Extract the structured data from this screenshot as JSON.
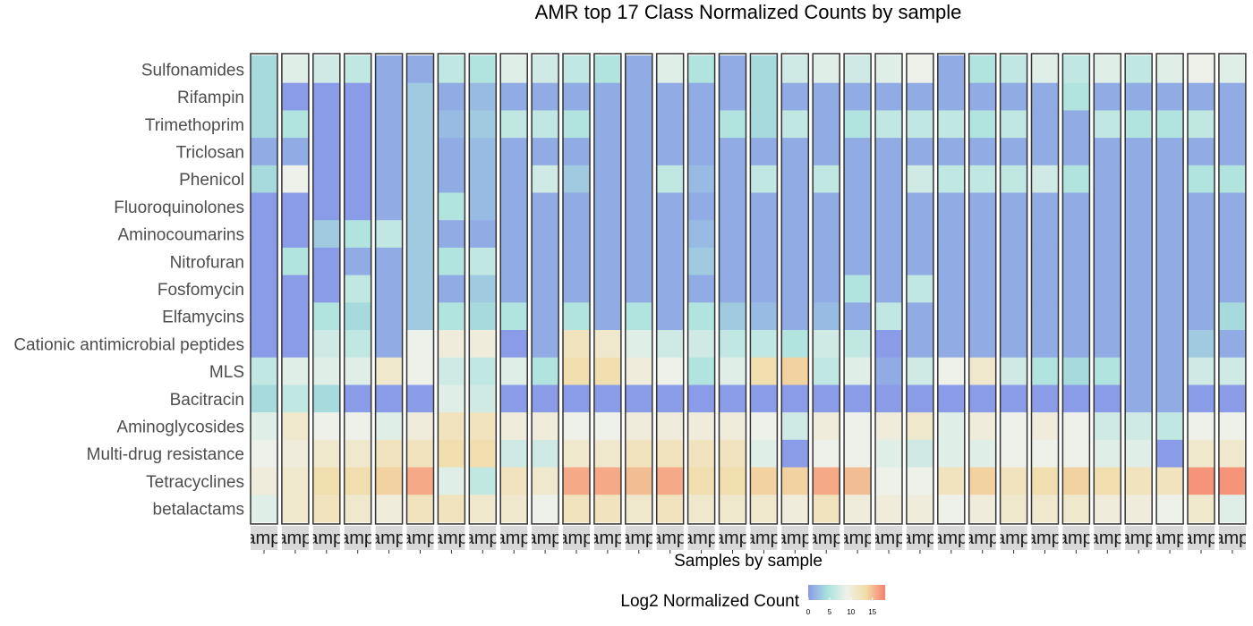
{
  "chart_data": {
    "type": "heatmap",
    "title": "AMR top 17 Class Normalized Counts by sample",
    "xlabel": "Samples by sample",
    "ylabel": "",
    "row_labels": [
      "Sulfonamides",
      "Rifampin",
      "Trimethoprim",
      "Triclosan",
      "Phenicol",
      "Fluoroquinolones",
      "Aminocoumarins",
      "Nitrofuran",
      "Fosfomycin",
      "Elfamycins",
      "Cationic antimicrobial peptides",
      "MLS",
      "Bacitracin",
      "Aminoglycosides",
      "Multi-drug resistance",
      "Tetracyclines",
      "betalactams"
    ],
    "facet_label": "Sample",
    "legend": {
      "title": "Log2 Normalized Count",
      "ticks": [
        0,
        5,
        10,
        15
      ],
      "range": [
        0,
        18
      ],
      "position": "bottom",
      "colors": [
        "#8a9be8",
        "#a9e2dc",
        "#eef1ea",
        "#f1dca8",
        "#f8806d"
      ]
    },
    "columns": [
      [
        4,
        4,
        4,
        1,
        4,
        0,
        0,
        0,
        0,
        0,
        0,
        6,
        4,
        8,
        9,
        10,
        8
      ],
      [
        8,
        0,
        5,
        1,
        9,
        0,
        0,
        5,
        0,
        0,
        0,
        8,
        6,
        11,
        10,
        11,
        11
      ],
      [
        7,
        0,
        0,
        0,
        0,
        0,
        3,
        0,
        0,
        5,
        7,
        8,
        4,
        9,
        11,
        13,
        12
      ],
      [
        6,
        0,
        0,
        0,
        0,
        0,
        5,
        1,
        6,
        4,
        6,
        8,
        0,
        9,
        11,
        13,
        11
      ],
      [
        1,
        1,
        1,
        1,
        1,
        1,
        6,
        1,
        1,
        1,
        1,
        11,
        0,
        8,
        12,
        14,
        10
      ],
      [
        1,
        3,
        3,
        3,
        3,
        3,
        3,
        3,
        3,
        3,
        9,
        9,
        0,
        10,
        12,
        16,
        12
      ],
      [
        6,
        1,
        2,
        1,
        1,
        5,
        1,
        5,
        1,
        5,
        10,
        7,
        8,
        12,
        13,
        8,
        12
      ],
      [
        5,
        2,
        3,
        2,
        2,
        2,
        1,
        6,
        3,
        4,
        10,
        6,
        7,
        12,
        13,
        6,
        11
      ],
      [
        8,
        1,
        6,
        1,
        1,
        1,
        1,
        1,
        1,
        5,
        0,
        8,
        0,
        10,
        7,
        12,
        11
      ],
      [
        7,
        1,
        6,
        1,
        7,
        1,
        1,
        1,
        1,
        1,
        1,
        5,
        0,
        10,
        7,
        11,
        9
      ],
      [
        6,
        1,
        5,
        1,
        3,
        1,
        1,
        1,
        1,
        5,
        12,
        13,
        0,
        9,
        11,
        16,
        12
      ],
      [
        5,
        1,
        1,
        1,
        1,
        1,
        1,
        1,
        1,
        1,
        11,
        13,
        0,
        9,
        11,
        16,
        12
      ],
      [
        1,
        1,
        1,
        1,
        1,
        1,
        1,
        1,
        1,
        5,
        8,
        10,
        0,
        10,
        12,
        15,
        11
      ],
      [
        8,
        1,
        1,
        1,
        6,
        1,
        1,
        1,
        1,
        1,
        7,
        9,
        0,
        10,
        12,
        16,
        12
      ],
      [
        5,
        1,
        1,
        1,
        2,
        1,
        2,
        3,
        1,
        5,
        7,
        5,
        0,
        10,
        12,
        13,
        11
      ],
      [
        1,
        1,
        5,
        1,
        1,
        1,
        1,
        1,
        1,
        3,
        6,
        8,
        0,
        10,
        12,
        13,
        11
      ],
      [
        4,
        4,
        4,
        1,
        6,
        1,
        1,
        1,
        1,
        2,
        6,
        13,
        0,
        9,
        8,
        14,
        11
      ],
      [
        7,
        1,
        6,
        1,
        1,
        1,
        1,
        1,
        1,
        1,
        5,
        14,
        0,
        7,
        0,
        14,
        10
      ],
      [
        8,
        1,
        1,
        1,
        6,
        1,
        1,
        1,
        1,
        2,
        7,
        6,
        0,
        10,
        9,
        16,
        12
      ],
      [
        7,
        1,
        5,
        1,
        1,
        1,
        1,
        1,
        5,
        1,
        6,
        8,
        0,
        9,
        9,
        15,
        10
      ],
      [
        8,
        1,
        6,
        1,
        1,
        1,
        1,
        1,
        1,
        6,
        0,
        1,
        0,
        10,
        8,
        9,
        10
      ],
      [
        9,
        1,
        6,
        1,
        7,
        1,
        1,
        1,
        6,
        1,
        1,
        7,
        0,
        11,
        7,
        9,
        10
      ],
      [
        1,
        1,
        6,
        1,
        6,
        1,
        1,
        1,
        1,
        1,
        1,
        9,
        0,
        8,
        8,
        12,
        9
      ],
      [
        5,
        1,
        5,
        1,
        6,
        1,
        1,
        1,
        1,
        1,
        1,
        11,
        0,
        10,
        8,
        14,
        10
      ],
      [
        6,
        1,
        6,
        1,
        6,
        1,
        1,
        1,
        1,
        1,
        1,
        7,
        0,
        9,
        9,
        12,
        11
      ],
      [
        8,
        1,
        1,
        1,
        7,
        1,
        1,
        1,
        1,
        1,
        1,
        5,
        0,
        10,
        9,
        13,
        11
      ],
      [
        6,
        5,
        1,
        1,
        5,
        1,
        1,
        1,
        1,
        1,
        1,
        4,
        0,
        9,
        9,
        14,
        11
      ],
      [
        8,
        1,
        6,
        1,
        1,
        1,
        1,
        1,
        1,
        1,
        1,
        5,
        0,
        7,
        8,
        13,
        10
      ],
      [
        6,
        1,
        5,
        1,
        1,
        1,
        1,
        1,
        1,
        1,
        1,
        1,
        1,
        7,
        8,
        12,
        10
      ],
      [
        8,
        1,
        5,
        1,
        1,
        1,
        1,
        1,
        1,
        1,
        1,
        1,
        1,
        6,
        0,
        12,
        9
      ],
      [
        9,
        1,
        6,
        1,
        5,
        1,
        1,
        1,
        1,
        1,
        3,
        7,
        0,
        9,
        11,
        17,
        11
      ],
      [
        8,
        1,
        1,
        1,
        5,
        1,
        1,
        1,
        1,
        4,
        1,
        7,
        0,
        9,
        11,
        17,
        8
      ]
    ]
  }
}
